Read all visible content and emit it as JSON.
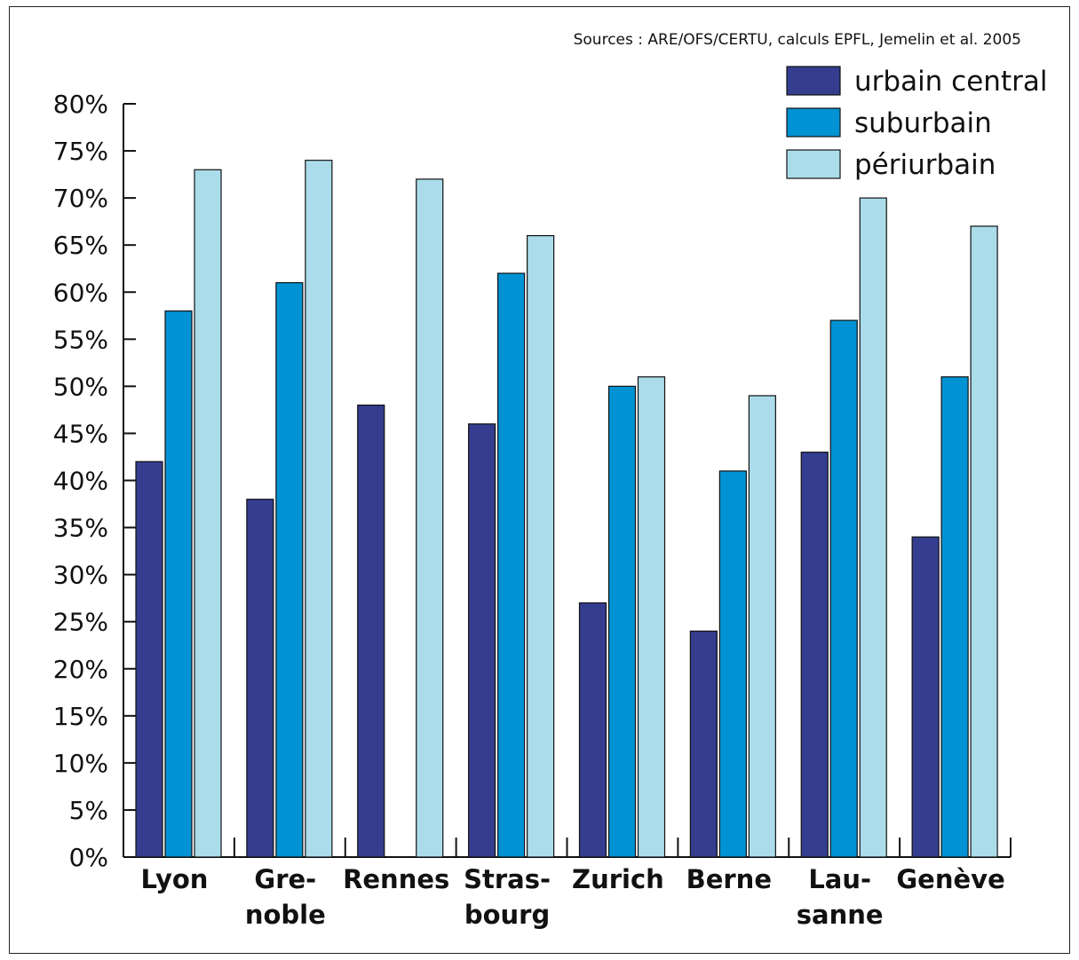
{
  "chart_data": {
    "type": "bar",
    "source": "Sources : ARE/OFS/CERTU, calculs EPFL, Jemelin et al. 2005",
    "categories": [
      [
        "Lyon"
      ],
      [
        "Gre-",
        "noble"
      ],
      [
        "Rennes"
      ],
      [
        "Stras-",
        "bourg"
      ],
      [
        "Zurich"
      ],
      [
        "Berne"
      ],
      [
        "Lau-",
        "sanne"
      ],
      [
        "Genève"
      ]
    ],
    "series": [
      {
        "name": "urbain central",
        "color": "#343d8e",
        "values": [
          42,
          38,
          48,
          46,
          27,
          24,
          43,
          34
        ]
      },
      {
        "name": "suburbain",
        "color": "#0092d3",
        "values": [
          58,
          61,
          null,
          62,
          50,
          41,
          57,
          51
        ]
      },
      {
        "name": "périurbain",
        "color": "#abdcea",
        "values": [
          73,
          74,
          72,
          66,
          51,
          49,
          70,
          67
        ]
      }
    ],
    "ylim": [
      0,
      80
    ],
    "yticks": [
      "0%",
      "5%",
      "10%",
      "15%",
      "20%",
      "25%",
      "30%",
      "35%",
      "40%",
      "45%",
      "50%",
      "55%",
      "60%",
      "65%",
      "70%",
      "75%",
      "80%"
    ],
    "ytick_step": 5,
    "legend": "top-right",
    "grid": false
  }
}
